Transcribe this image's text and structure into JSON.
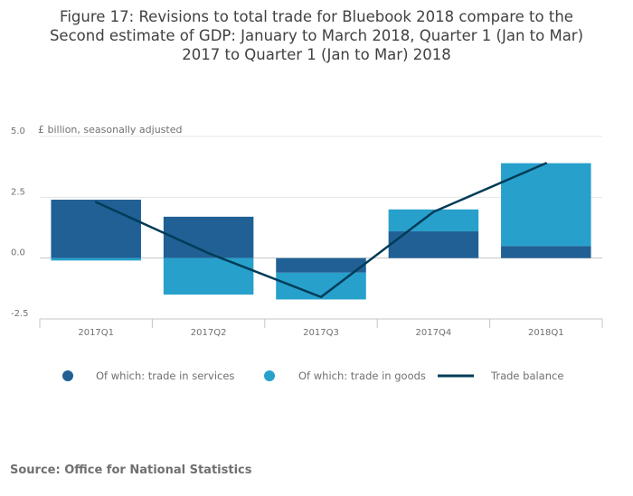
{
  "chart_data": {
    "type": "bar",
    "stacked": true,
    "title_lines": [
      "Figure 17: Revisions to total trade for Bluebook 2018 compare to the",
      "Second estimate of GDP: January to March 2018, Quarter 1 (Jan to Mar)",
      "2017 to Quarter 1 (Jan to Mar) 2018"
    ],
    "unit_label": "£ billion, seasonally adjusted",
    "categories": [
      "2017Q1",
      "2017Q2",
      "2017Q3",
      "2017Q4",
      "2018Q1"
    ],
    "ylim": [
      -2.5,
      5.0
    ],
    "yticks": [
      5.0,
      2.5,
      0.0,
      -2.5
    ],
    "ytick_labels": [
      "5.0",
      "2.5",
      "0.0",
      "-2.5"
    ],
    "series": [
      {
        "name": "Of which: trade in services",
        "kind": "bar",
        "color": "#206095",
        "values": [
          2.4,
          1.7,
          -0.6,
          1.1,
          0.5
        ]
      },
      {
        "name": "Of which: trade in goods",
        "kind": "bar",
        "color": "#27a0cc",
        "values": [
          -0.1,
          -1.5,
          -1.1,
          0.9,
          3.4
        ]
      },
      {
        "name": "Trade balance",
        "kind": "line",
        "color": "#003c57",
        "values": [
          2.3,
          0.2,
          -1.6,
          1.9,
          3.9
        ]
      }
    ],
    "legend_position": "bottom"
  },
  "source": "Source: Office for National Statistics"
}
